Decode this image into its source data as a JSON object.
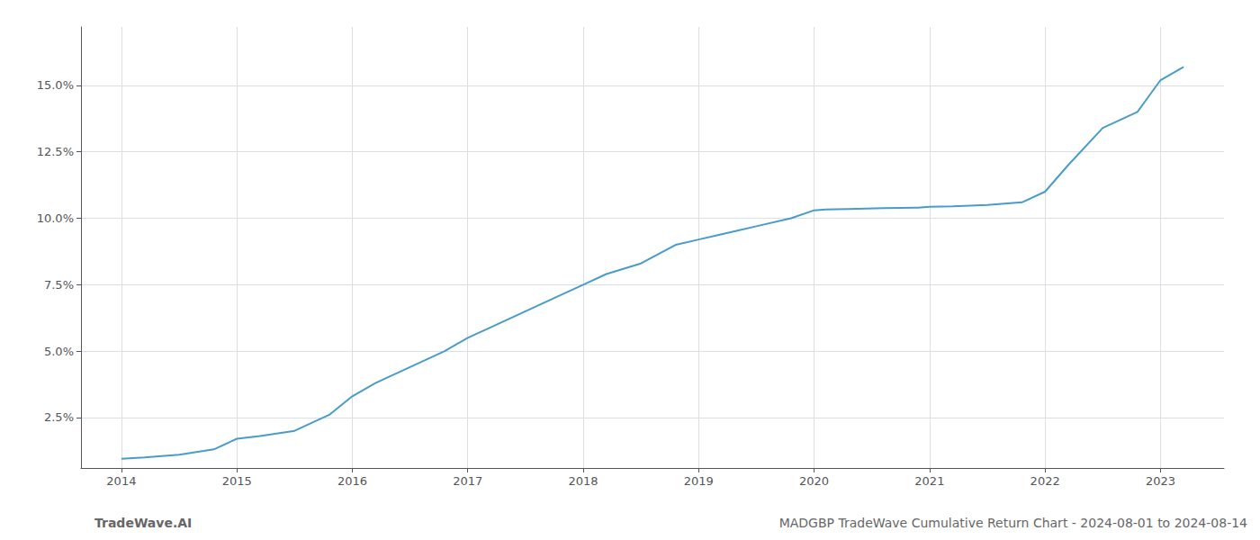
{
  "chart_data": {
    "type": "line",
    "x": [
      2014.0,
      2014.2,
      2014.5,
      2014.8,
      2015.0,
      2015.2,
      2015.5,
      2015.8,
      2016.0,
      2016.2,
      2016.5,
      2016.8,
      2017.0,
      2017.2,
      2017.5,
      2017.8,
      2018.0,
      2018.2,
      2018.5,
      2018.8,
      2019.0,
      2019.2,
      2019.5,
      2019.8,
      2020.0,
      2020.1,
      2020.3,
      2020.6,
      2020.9,
      2021.0,
      2021.2,
      2021.5,
      2021.8,
      2022.0,
      2022.2,
      2022.5,
      2022.8,
      2023.0,
      2023.2
    ],
    "values": [
      0.0095,
      0.01,
      0.011,
      0.013,
      0.017,
      0.018,
      0.02,
      0.026,
      0.033,
      0.038,
      0.044,
      0.05,
      0.055,
      0.059,
      0.065,
      0.071,
      0.075,
      0.079,
      0.083,
      0.09,
      0.092,
      0.094,
      0.097,
      0.1,
      0.103,
      0.1033,
      0.1035,
      0.1038,
      0.104,
      0.1043,
      0.1045,
      0.105,
      0.106,
      0.11,
      0.12,
      0.134,
      0.14,
      0.152,
      0.157
    ],
    "color": "#4a9cc8",
    "xlim": [
      2013.65,
      2023.55
    ],
    "ylim": [
      0.006,
      0.172
    ],
    "xticks": [
      2014,
      2015,
      2016,
      2017,
      2018,
      2019,
      2020,
      2021,
      2022,
      2023
    ],
    "yticks": [
      {
        "value": 0.025,
        "label": "2.5%"
      },
      {
        "value": 0.05,
        "label": "5.0%"
      },
      {
        "value": 0.075,
        "label": "7.5%"
      },
      {
        "value": 0.1,
        "label": "10.0%"
      },
      {
        "value": 0.125,
        "label": "12.5%"
      },
      {
        "value": 0.15,
        "label": "15.0%"
      }
    ],
    "grid": true,
    "annotations": [
      "TradeWave.AI",
      "MADGBP TradeWave Cumulative Return Chart - 2024-08-01 to 2024-08-14"
    ]
  }
}
